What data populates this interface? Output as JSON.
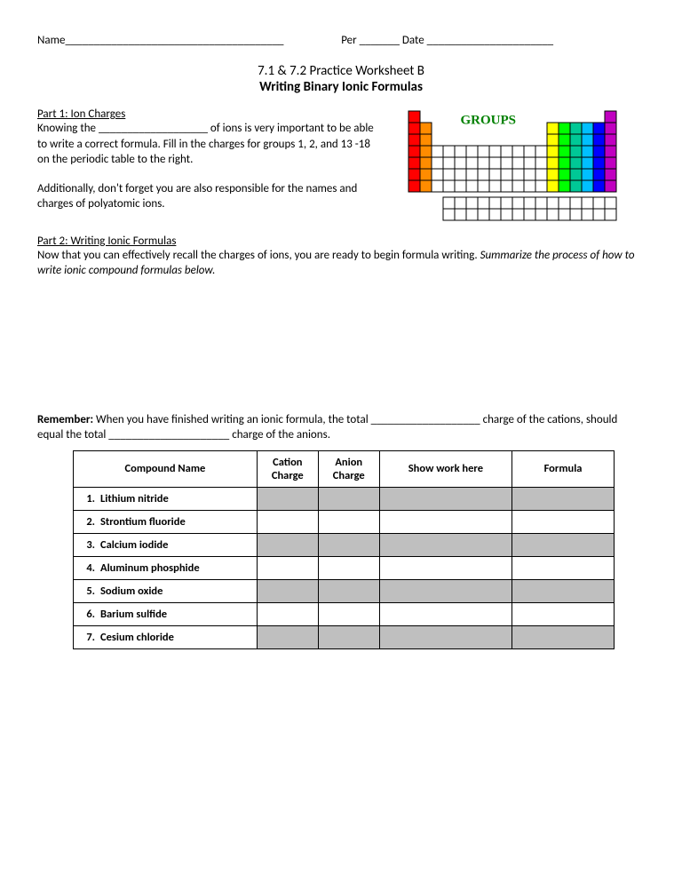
{
  "header": {
    "name_label": "Name",
    "name_blank": "______________________________________",
    "per_label": "Per",
    "per_blank": "_______",
    "date_label": "Date",
    "date_blank": "______________________"
  },
  "titles": {
    "line1": "7.1 & 7.2 Practice Worksheet B",
    "line2": "Writing Binary Ionic Formulas"
  },
  "part1": {
    "heading": "Part 1: Ion Charges",
    "text1a": "Knowing the ___________________ of ions is very important to be able to write a correct formula. Fill in the charges for groups 1, 2, and 13 -18 on the periodic table to the right.",
    "text2": "Additionally, don't forget you are also responsible for the names and charges of polyatomic ions."
  },
  "diagram": {
    "label": "GROUPS",
    "colors": {
      "g1": "#ff0000",
      "g2": "#ff8c00",
      "g13": "#ffff00",
      "g14": "#00ff00",
      "g15": "#00c896",
      "g16": "#00bfff",
      "g17": "#0000ff",
      "g18": "#c000c0",
      "border": "#000000",
      "bg": "#ffffff"
    },
    "cell": 13,
    "rows_main": 6
  },
  "part2": {
    "heading": "Part 2: Writing Ionic Formulas",
    "text_plain": "Now that you can effectively recall the charges of ions, you are ready to begin formula writing. ",
    "text_italic": "Summarize the process of how to write ionic compound formulas below."
  },
  "remember": {
    "label": "Remember:",
    "text": " When you have finished writing an ionic formula, the total ___________________ charge of the cations, should equal the total _____________________ charge of the anions."
  },
  "table": {
    "headers": {
      "name": "Compound Name",
      "cation": "Cation Charge",
      "anion": "Anion Charge",
      "work": "Show work here",
      "formula": "Formula"
    },
    "rows": [
      {
        "n": "1.",
        "name": "Lithium nitride",
        "shaded": true
      },
      {
        "n": "2.",
        "name": "Strontium fluoride",
        "shaded": false
      },
      {
        "n": "3.",
        "name": "Calcium iodide",
        "shaded": true
      },
      {
        "n": "4.",
        "name": "Aluminum phosphide",
        "shaded": false
      },
      {
        "n": "5.",
        "name": "Sodium oxide",
        "shaded": true
      },
      {
        "n": "6.",
        "name": "Barium sulfide",
        "shaded": false
      },
      {
        "n": "7.",
        "name": "Cesium chloride",
        "shaded": true
      }
    ]
  }
}
